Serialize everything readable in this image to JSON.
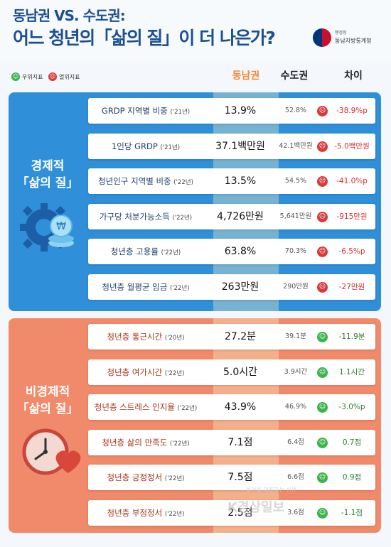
{
  "header": {
    "line1": "동남권 VS. 수도권:",
    "line2": "어느 청년의「삶의 질」이 더 나은가?",
    "logo_small": "행정청",
    "logo_name": "동남지방통계청"
  },
  "legend": {
    "good_label": "우위지표",
    "bad_label": "열위지표"
  },
  "columns": {
    "south": "동남권",
    "capital": "수도권",
    "diff": "차이"
  },
  "colors": {
    "econ_bg": "#2f8fd8",
    "non_econ_bg": "#f08a6a",
    "good": "#3cb44b",
    "bad": "#d93a3a",
    "title": "#1d4f91",
    "south_header": "#f08a3a"
  },
  "econ": {
    "label1": "경제적",
    "label2": "「삶의 질」",
    "icon": "gear-coin-icon",
    "rows": [
      {
        "label": "GRDP 지역별 비중",
        "year": "('21년)",
        "south": "13.9%",
        "capital": "52.8%",
        "status": "bad",
        "diff": "-38.9%p"
      },
      {
        "label": "1인당 GRDP",
        "year": "('21년)",
        "south": "37.1백만원",
        "capital": "42.1백만원",
        "status": "bad",
        "diff": "-5.0백만원"
      },
      {
        "label": "청년인구 지역별 비중",
        "year": "('22년)",
        "south": "13.5%",
        "capital": "54.5%",
        "status": "bad",
        "diff": "-41.0%p"
      },
      {
        "label": "가구당 처분가능소득",
        "year": "('22년)",
        "south": "4,726만원",
        "capital": "5,641만원",
        "status": "bad",
        "diff": "-915만원"
      },
      {
        "label": "청년층 고용률",
        "year": "('22년)",
        "south": "63.8%",
        "capital": "70.3%",
        "status": "bad",
        "diff": "-6.5%p"
      },
      {
        "label": "청년층 월평균 임금",
        "year": "('22년)",
        "south": "263만원",
        "capital": "290만원",
        "status": "bad",
        "diff": "-27만원"
      }
    ]
  },
  "non_econ": {
    "label1": "비경제적",
    "label2": "「삶의 질」",
    "icon": "clock-heart-icon",
    "rows": [
      {
        "label": "청년층 통근시간",
        "year": "('20년)",
        "south": "27.2분",
        "capital": "39.1분",
        "status": "good",
        "diff": "-11.9분"
      },
      {
        "label": "청년층 여가시간",
        "year": "('22년)",
        "south": "5.0시간",
        "capital": "3.9시간",
        "status": "good",
        "diff": "1.1시간"
      },
      {
        "label": "청년층 스트레스 인지율",
        "year": "('22년)",
        "south": "43.9%",
        "capital": "46.9%",
        "status": "good",
        "diff": "-3.0%p"
      },
      {
        "label": "청년층 삶의 만족도",
        "year": "('22년)",
        "south": "7.1점",
        "capital": "6.4점",
        "status": "good",
        "diff": "0.7점"
      },
      {
        "label": "청년층 긍정정서",
        "year": "('22년)",
        "south": "7.5점",
        "capital": "6.6점",
        "status": "good",
        "diff": "0.9점"
      },
      {
        "label": "청년층 부정정서",
        "year": "('22년)",
        "south": "2.5점",
        "capital": "3.6점",
        "status": "good",
        "diff": "-1.1점"
      }
    ]
  },
  "watermark": {
    "brand": "K경상일보",
    "small": "울산을 대표하는 신문"
  }
}
